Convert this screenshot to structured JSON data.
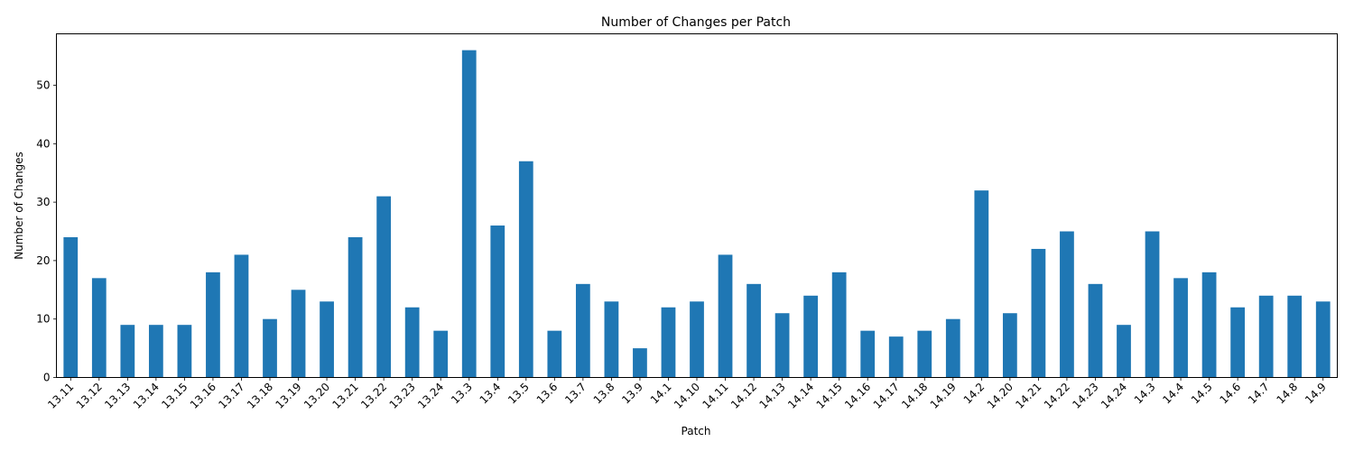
{
  "chart_data": {
    "type": "bar",
    "title": "Number of Changes per Patch",
    "xlabel": "Patch",
    "ylabel": "Number of Changes",
    "ylim": [
      0,
      58.8
    ],
    "yticks": [
      0,
      10,
      20,
      30,
      40,
      50
    ],
    "grid": false,
    "color": "#1f77b4",
    "categories": [
      "13.11",
      "13.12",
      "13.13",
      "13.14",
      "13.15",
      "13.16",
      "13.17",
      "13.18",
      "13.19",
      "13.20",
      "13.21",
      "13.22",
      "13.23",
      "13.24",
      "13.3",
      "13.4",
      "13.5",
      "13.6",
      "13.7",
      "13.8",
      "13.9",
      "14.1",
      "14.10",
      "14.11",
      "14.12",
      "14.13",
      "14.14",
      "14.15",
      "14.16",
      "14.17",
      "14.18",
      "14.19",
      "14.2",
      "14.20",
      "14.21",
      "14.22",
      "14.23",
      "14.24",
      "14.3",
      "14.4",
      "14.5",
      "14.6",
      "14.7",
      "14.8",
      "14.9"
    ],
    "values": [
      24,
      17,
      9,
      9,
      9,
      18,
      21,
      10,
      15,
      13,
      24,
      31,
      12,
      8,
      56,
      26,
      37,
      8,
      16,
      13,
      5,
      12,
      13,
      21,
      16,
      11,
      14,
      18,
      8,
      7,
      8,
      10,
      32,
      11,
      22,
      25,
      16,
      9,
      25,
      17,
      18,
      12,
      14,
      14,
      13
    ]
  }
}
